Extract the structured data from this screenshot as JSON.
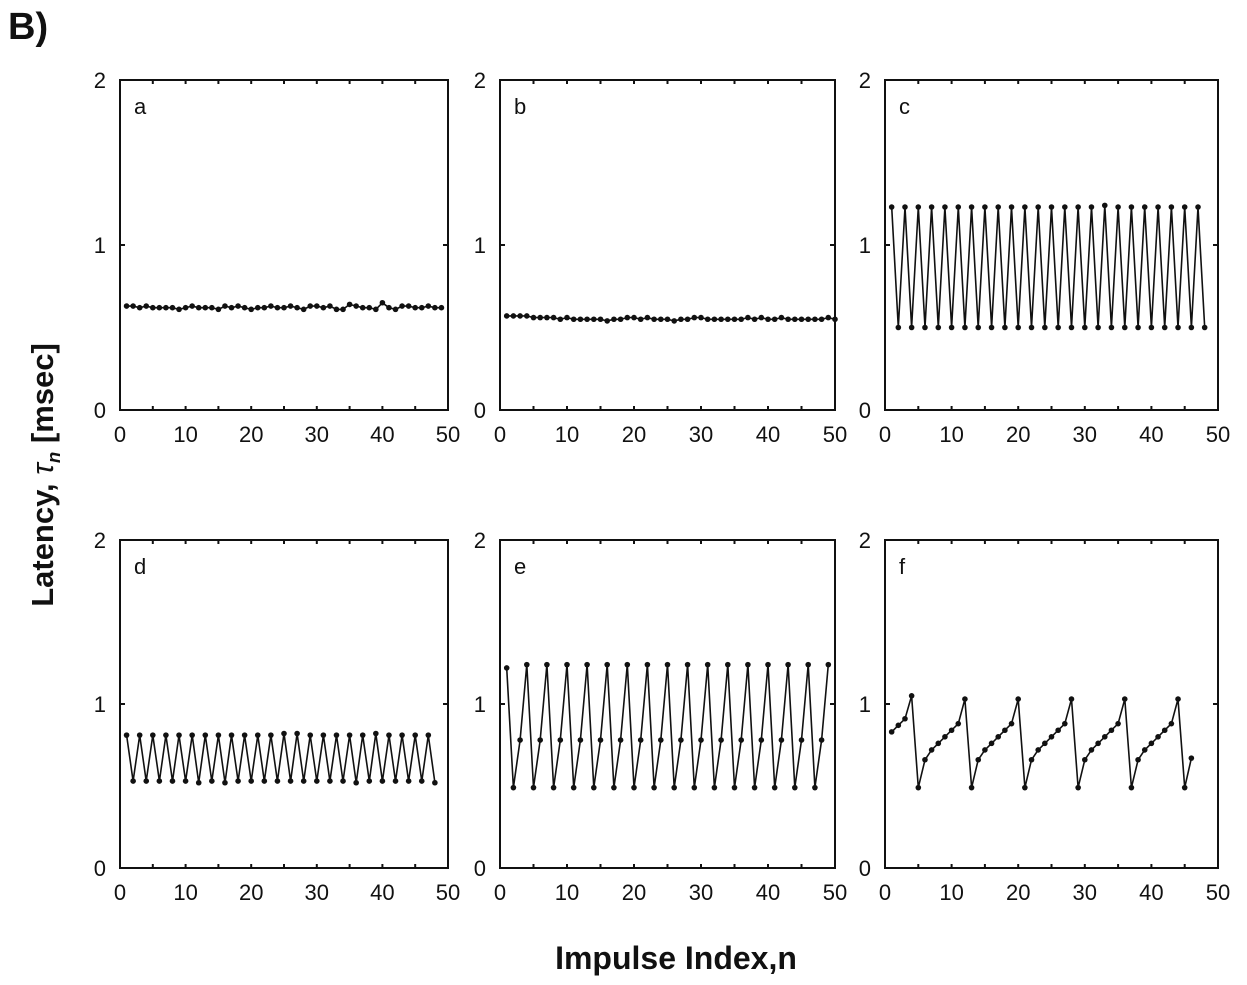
{
  "figure_label": "B)",
  "ylabel_main": "Latency, ",
  "ylabel_symbol": "τ",
  "ylabel_sub": "n",
  "ylabel_unit": " [msec]",
  "xlabel": "Impulse Index,n",
  "chart_data": [
    {
      "type": "line",
      "panel": "a",
      "xlim": [
        0,
        50
      ],
      "ylim": [
        0,
        2
      ],
      "xticks": [
        0,
        10,
        20,
        30,
        40,
        50
      ],
      "yticks": [
        0,
        1,
        2
      ],
      "grid": false,
      "series": [
        {
          "x": [
            1,
            2,
            3,
            4,
            5,
            6,
            7,
            8,
            9,
            10,
            11,
            12,
            13,
            14,
            15,
            16,
            17,
            18,
            19,
            20,
            21,
            22,
            23,
            24,
            25,
            26,
            27,
            28,
            29,
            30,
            31,
            32,
            33,
            34,
            35,
            36,
            37,
            38,
            39,
            40,
            41,
            42,
            43,
            44,
            45,
            46,
            47,
            48,
            49
          ],
          "values": [
            0.63,
            0.63,
            0.62,
            0.63,
            0.62,
            0.62,
            0.62,
            0.62,
            0.61,
            0.62,
            0.63,
            0.62,
            0.62,
            0.62,
            0.61,
            0.63,
            0.62,
            0.63,
            0.62,
            0.61,
            0.62,
            0.62,
            0.63,
            0.62,
            0.62,
            0.63,
            0.62,
            0.61,
            0.63,
            0.63,
            0.62,
            0.63,
            0.61,
            0.61,
            0.64,
            0.63,
            0.62,
            0.62,
            0.61,
            0.65,
            0.62,
            0.61,
            0.63,
            0.63,
            0.62,
            0.62,
            0.63,
            0.62,
            0.62
          ]
        }
      ]
    },
    {
      "type": "line",
      "panel": "b",
      "xlim": [
        0,
        50
      ],
      "ylim": [
        0,
        2
      ],
      "xticks": [
        0,
        10,
        20,
        30,
        40,
        50
      ],
      "yticks": [
        0,
        1,
        2
      ],
      "grid": false,
      "series": [
        {
          "x": [
            1,
            2,
            3,
            4,
            5,
            6,
            7,
            8,
            9,
            10,
            11,
            12,
            13,
            14,
            15,
            16,
            17,
            18,
            19,
            20,
            21,
            22,
            23,
            24,
            25,
            26,
            27,
            28,
            29,
            30,
            31,
            32,
            33,
            34,
            35,
            36,
            37,
            38,
            39,
            40,
            41,
            42,
            43,
            44,
            45,
            46,
            47,
            48,
            49,
            50
          ],
          "values": [
            0.57,
            0.57,
            0.57,
            0.57,
            0.56,
            0.56,
            0.56,
            0.56,
            0.55,
            0.56,
            0.55,
            0.55,
            0.55,
            0.55,
            0.55,
            0.54,
            0.55,
            0.55,
            0.56,
            0.56,
            0.55,
            0.56,
            0.55,
            0.55,
            0.55,
            0.54,
            0.55,
            0.55,
            0.56,
            0.56,
            0.55,
            0.55,
            0.55,
            0.55,
            0.55,
            0.55,
            0.56,
            0.55,
            0.56,
            0.55,
            0.55,
            0.56,
            0.55,
            0.55,
            0.55,
            0.55,
            0.55,
            0.55,
            0.56,
            0.55
          ]
        }
      ]
    },
    {
      "type": "line",
      "panel": "c",
      "xlim": [
        0,
        50
      ],
      "ylim": [
        0,
        2
      ],
      "xticks": [
        0,
        10,
        20,
        30,
        40,
        50
      ],
      "yticks": [
        0,
        1,
        2
      ],
      "grid": false,
      "series": [
        {
          "x": [
            1,
            2,
            3,
            4,
            5,
            6,
            7,
            8,
            9,
            10,
            11,
            12,
            13,
            14,
            15,
            16,
            17,
            18,
            19,
            20,
            21,
            22,
            23,
            24,
            25,
            26,
            27,
            28,
            29,
            30,
            31,
            32,
            33,
            34,
            35,
            36,
            37,
            38,
            39,
            40,
            41,
            42,
            43,
            44,
            45,
            46,
            47,
            48
          ],
          "values": [
            1.23,
            0.5,
            1.23,
            0.5,
            1.23,
            0.5,
            1.23,
            0.5,
            1.23,
            0.5,
            1.23,
            0.5,
            1.23,
            0.5,
            1.23,
            0.5,
            1.23,
            0.5,
            1.23,
            0.5,
            1.23,
            0.5,
            1.23,
            0.5,
            1.23,
            0.5,
            1.23,
            0.5,
            1.23,
            0.5,
            1.23,
            0.5,
            1.24,
            0.5,
            1.23,
            0.5,
            1.23,
            0.5,
            1.23,
            0.5,
            1.23,
            0.5,
            1.23,
            0.5,
            1.23,
            0.5,
            1.23,
            0.5
          ]
        }
      ]
    },
    {
      "type": "line",
      "panel": "d",
      "xlim": [
        0,
        50
      ],
      "ylim": [
        0,
        2
      ],
      "xticks": [
        0,
        10,
        20,
        30,
        40,
        50
      ],
      "yticks": [
        0,
        1,
        2
      ],
      "grid": false,
      "series": [
        {
          "x": [
            1,
            2,
            3,
            4,
            5,
            6,
            7,
            8,
            9,
            10,
            11,
            12,
            13,
            14,
            15,
            16,
            17,
            18,
            19,
            20,
            21,
            22,
            23,
            24,
            25,
            26,
            27,
            28,
            29,
            30,
            31,
            32,
            33,
            34,
            35,
            36,
            37,
            38,
            39,
            40,
            41,
            42,
            43,
            44,
            45,
            46,
            47,
            48
          ],
          "values": [
            0.81,
            0.53,
            0.81,
            0.53,
            0.81,
            0.53,
            0.81,
            0.53,
            0.81,
            0.53,
            0.81,
            0.52,
            0.81,
            0.53,
            0.81,
            0.52,
            0.81,
            0.53,
            0.81,
            0.53,
            0.81,
            0.53,
            0.81,
            0.53,
            0.82,
            0.53,
            0.82,
            0.53,
            0.81,
            0.53,
            0.81,
            0.53,
            0.81,
            0.53,
            0.81,
            0.52,
            0.81,
            0.53,
            0.82,
            0.53,
            0.81,
            0.53,
            0.81,
            0.53,
            0.81,
            0.53,
            0.81,
            0.52
          ]
        }
      ]
    },
    {
      "type": "line",
      "panel": "e",
      "xlim": [
        0,
        50
      ],
      "ylim": [
        0,
        2
      ],
      "xticks": [
        0,
        10,
        20,
        30,
        40,
        50
      ],
      "yticks": [
        0,
        1,
        2
      ],
      "grid": false,
      "series": [
        {
          "x": [
            1,
            2,
            3,
            4,
            5,
            6,
            7,
            8,
            9,
            10,
            11,
            12,
            13,
            14,
            15,
            16,
            17,
            18,
            19,
            20,
            21,
            22,
            23,
            24,
            25,
            26,
            27,
            28,
            29,
            30,
            31,
            32,
            33,
            34,
            35,
            36,
            37,
            38,
            39,
            40,
            41,
            42,
            43,
            44,
            45,
            46,
            47,
            48,
            49
          ],
          "values": [
            1.22,
            0.49,
            0.78,
            1.24,
            0.49,
            0.78,
            1.24,
            0.49,
            0.78,
            1.24,
            0.49,
            0.78,
            1.24,
            0.49,
            0.78,
            1.24,
            0.49,
            0.78,
            1.24,
            0.49,
            0.78,
            1.24,
            0.49,
            0.78,
            1.24,
            0.49,
            0.78,
            1.24,
            0.49,
            0.78,
            1.24,
            0.49,
            0.78,
            1.24,
            0.49,
            0.78,
            1.24,
            0.49,
            0.78,
            1.24,
            0.49,
            0.78,
            1.24,
            0.49,
            0.78,
            1.24,
            0.49,
            0.78,
            1.24
          ]
        }
      ]
    },
    {
      "type": "line",
      "panel": "f",
      "xlim": [
        0,
        50
      ],
      "ylim": [
        0,
        2
      ],
      "xticks": [
        0,
        10,
        20,
        30,
        40,
        50
      ],
      "yticks": [
        0,
        1,
        2
      ],
      "grid": false,
      "series": [
        {
          "x": [
            1,
            2,
            3,
            4,
            5,
            6,
            7,
            8,
            9,
            10,
            11,
            12,
            13,
            14,
            15,
            16,
            17,
            18,
            19,
            20,
            21,
            22,
            23,
            24,
            25,
            26,
            27,
            28,
            29,
            30,
            31,
            32,
            33,
            34,
            35,
            36,
            37,
            38,
            39,
            40,
            41,
            42,
            43,
            44,
            45,
            46
          ],
          "values": [
            0.83,
            0.87,
            0.91,
            1.05,
            0.49,
            0.66,
            0.72,
            0.76,
            0.8,
            0.84,
            0.88,
            1.03,
            0.49,
            0.66,
            0.72,
            0.76,
            0.8,
            0.84,
            0.88,
            1.03,
            0.49,
            0.66,
            0.72,
            0.76,
            0.8,
            0.84,
            0.88,
            1.03,
            0.49,
            0.66,
            0.72,
            0.76,
            0.8,
            0.84,
            0.88,
            1.03,
            0.49,
            0.66,
            0.72,
            0.76,
            0.8,
            0.84,
            0.88,
            1.03,
            0.49,
            0.67
          ]
        }
      ]
    }
  ]
}
